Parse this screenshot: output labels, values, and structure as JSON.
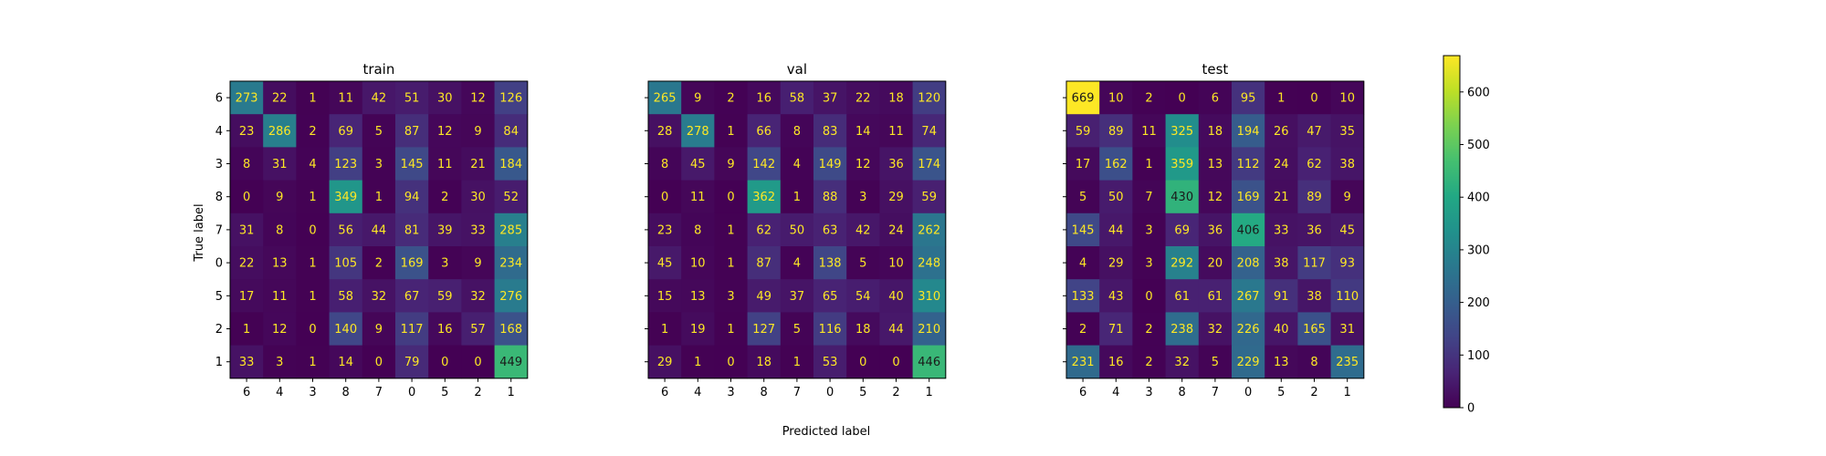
{
  "chart_data": {
    "type": "heatmap",
    "xlabel": "Predicted label",
    "ylabel": "True label",
    "labels": [
      "6",
      "4",
      "3",
      "8",
      "7",
      "0",
      "5",
      "2",
      "1"
    ],
    "colormap": "viridis",
    "colorbar": {
      "min": 0,
      "max": 669,
      "ticks": [
        0,
        100,
        200,
        300,
        400,
        500,
        600
      ]
    },
    "panels": [
      {
        "title": "train",
        "matrix": [
          [
            273,
            22,
            1,
            11,
            42,
            51,
            30,
            12,
            126
          ],
          [
            23,
            286,
            2,
            69,
            5,
            87,
            12,
            9,
            84
          ],
          [
            8,
            31,
            4,
            123,
            3,
            145,
            11,
            21,
            184
          ],
          [
            0,
            9,
            1,
            349,
            1,
            94,
            2,
            30,
            52
          ],
          [
            31,
            8,
            0,
            56,
            44,
            81,
            39,
            33,
            285
          ],
          [
            22,
            13,
            1,
            105,
            2,
            169,
            3,
            9,
            234
          ],
          [
            17,
            11,
            1,
            58,
            32,
            67,
            59,
            32,
            276
          ],
          [
            1,
            12,
            0,
            140,
            9,
            117,
            16,
            57,
            168
          ],
          [
            33,
            3,
            1,
            14,
            0,
            79,
            0,
            0,
            449
          ]
        ]
      },
      {
        "title": "val",
        "matrix": [
          [
            265,
            9,
            2,
            16,
            58,
            37,
            22,
            18,
            120
          ],
          [
            28,
            278,
            1,
            66,
            8,
            83,
            14,
            11,
            74
          ],
          [
            8,
            45,
            9,
            142,
            4,
            149,
            12,
            36,
            174
          ],
          [
            0,
            11,
            0,
            362,
            1,
            88,
            3,
            29,
            59
          ],
          [
            23,
            8,
            1,
            62,
            50,
            63,
            42,
            24,
            262
          ],
          [
            45,
            10,
            1,
            87,
            4,
            138,
            5,
            10,
            248
          ],
          [
            15,
            13,
            3,
            49,
            37,
            65,
            54,
            40,
            310
          ],
          [
            1,
            19,
            1,
            127,
            5,
            116,
            18,
            44,
            210
          ],
          [
            29,
            1,
            0,
            18,
            1,
            53,
            0,
            0,
            446
          ]
        ]
      },
      {
        "title": "test",
        "matrix": [
          [
            669,
            10,
            2,
            0,
            6,
            95,
            1,
            0,
            10
          ],
          [
            59,
            89,
            11,
            325,
            18,
            194,
            26,
            47,
            35
          ],
          [
            17,
            162,
            1,
            359,
            13,
            112,
            24,
            62,
            38
          ],
          [
            5,
            50,
            7,
            430,
            12,
            169,
            21,
            89,
            9
          ],
          [
            145,
            44,
            3,
            69,
            36,
            406,
            33,
            36,
            45
          ],
          [
            4,
            29,
            3,
            292,
            20,
            208,
            38,
            117,
            93
          ],
          [
            133,
            43,
            0,
            61,
            61,
            267,
            91,
            38,
            110
          ],
          [
            2,
            71,
            2,
            238,
            32,
            226,
            40,
            165,
            31
          ],
          [
            231,
            16,
            2,
            32,
            5,
            229,
            13,
            8,
            235
          ]
        ]
      }
    ]
  }
}
